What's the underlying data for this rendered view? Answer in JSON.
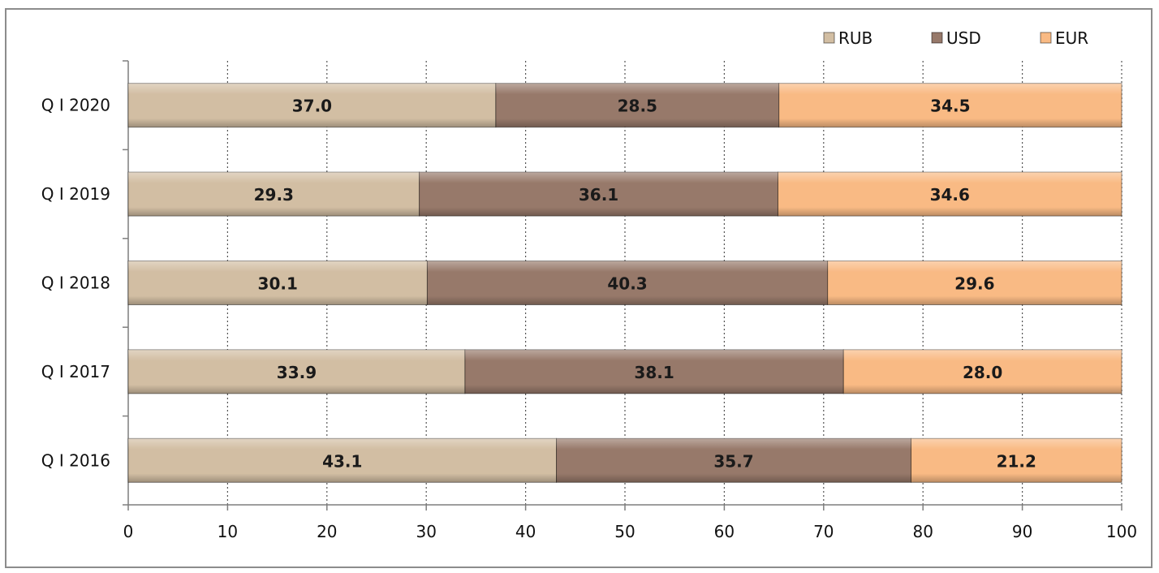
{
  "chart_data": {
    "type": "bar",
    "orientation": "horizontal",
    "stacked": true,
    "categories": [
      "Q I 2020",
      "Q I 2019",
      "Q I 2018",
      "Q I 2017",
      "Q I 2016"
    ],
    "series": [
      {
        "name": "RUB",
        "color": "#d2bea3",
        "values": [
          37.0,
          29.3,
          30.1,
          33.9,
          43.1
        ],
        "labels": [
          "37.0",
          "29.3",
          "30.1",
          "33.9",
          "43.1"
        ]
      },
      {
        "name": "USD",
        "color": "#97796a",
        "values": [
          28.5,
          36.1,
          40.3,
          38.1,
          35.7
        ],
        "labels": [
          "28.5",
          "36.1",
          "40.3",
          "38.1",
          "35.7"
        ]
      },
      {
        "name": "EUR",
        "color": "#f9ba84",
        "values": [
          34.5,
          34.6,
          29.6,
          28.0,
          21.2
        ],
        "labels": [
          "34.5",
          "34.6",
          "29.6",
          "28.0",
          "21.2"
        ]
      }
    ],
    "xlim": [
      0,
      100
    ],
    "xticks": [
      "0",
      "10",
      "20",
      "30",
      "40",
      "50",
      "60",
      "70",
      "80",
      "90",
      "100"
    ],
    "grid": "vertical dotted",
    "legend_position": "top-right"
  }
}
